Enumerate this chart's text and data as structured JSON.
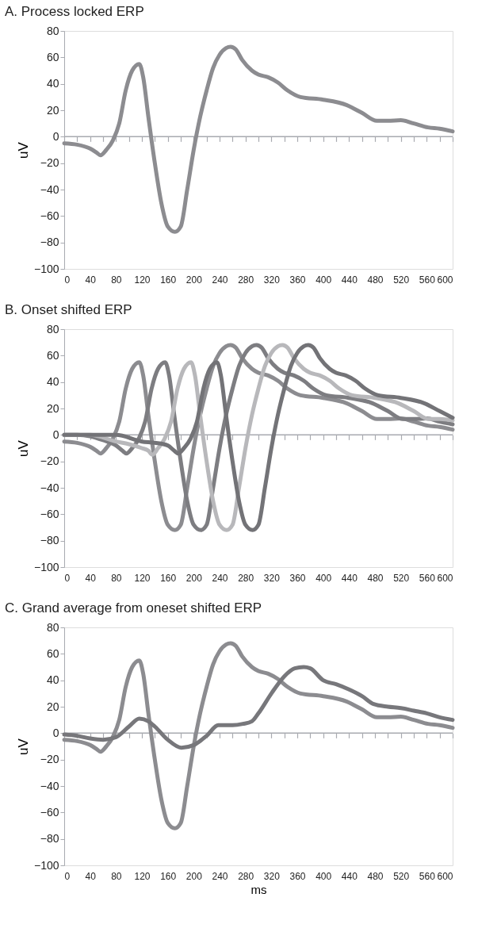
{
  "chart_data": [
    {
      "type": "line",
      "title": "A. Process locked ERP",
      "ylabel": "uV",
      "xlim": [
        0,
        600
      ],
      "ylim": [
        -100,
        80
      ],
      "yticks": [
        -100,
        -80,
        -60,
        -40,
        -20,
        0,
        20,
        40,
        60,
        80
      ],
      "xticks": [
        0,
        {
          "value": 20,
          "label": null
        },
        40,
        {
          "value": 60,
          "label": null
        },
        80,
        {
          "value": 100,
          "label": null
        },
        120,
        {
          "value": 140,
          "label": null
        },
        160,
        {
          "value": 180,
          "label": null
        },
        200,
        {
          "value": 220,
          "label": null
        },
        240,
        {
          "value": 260,
          "label": null
        },
        280,
        {
          "value": 300,
          "label": null
        },
        320,
        {
          "value": 340,
          "label": null
        },
        360,
        {
          "value": 380,
          "label": null
        },
        400,
        {
          "value": 420,
          "label": null
        },
        440,
        {
          "value": 460,
          "label": null
        },
        480,
        {
          "value": 500,
          "label": null
        },
        520,
        {
          "value": 540,
          "label": null
        },
        560,
        {
          "value": 580,
          "label": null
        },
        600
      ],
      "grid": false,
      "legend": false,
      "line_style": "solid",
      "ref_lines": [
        {
          "axis": "y",
          "value": 0,
          "color": "#a8aab0"
        }
      ],
      "series": [
        {
          "color": "#8c8c90",
          "x": [
            0,
            20,
            40,
            50,
            56,
            65,
            75,
            85,
            95,
            105,
            116,
            122,
            130,
            140,
            150,
            160,
            171,
            180,
            190,
            200,
            210,
            220,
            230,
            240,
            250,
            257,
            265,
            275,
            290,
            300,
            315,
            330,
            345,
            365,
            400,
            436,
            460,
            483,
            500,
            520,
            540,
            562,
            580,
            600
          ],
          "values": [
            -5,
            -6,
            -9,
            -12,
            -14,
            -10,
            -3,
            10,
            35,
            50,
            55,
            45,
            15,
            -20,
            -50,
            -68,
            -72,
            -68,
            -40,
            -10,
            15,
            35,
            52,
            62,
            67,
            68,
            66,
            58,
            50,
            47,
            45,
            41,
            35,
            30,
            28,
            24,
            18,
            12,
            12,
            12.5,
            10,
            7,
            6,
            4
          ]
        }
      ]
    },
    {
      "type": "line",
      "title": "B. Onset shifted ERP",
      "ylabel": "uV",
      "xlim": [
        0,
        600
      ],
      "ylim": [
        -100,
        80
      ],
      "yticks": [
        -100,
        -80,
        -60,
        -40,
        -20,
        0,
        20,
        40,
        60,
        80
      ],
      "xticks": [
        0,
        {
          "value": 20,
          "label": null
        },
        40,
        {
          "value": 60,
          "label": null
        },
        80,
        {
          "value": 100,
          "label": null
        },
        120,
        {
          "value": 140,
          "label": null
        },
        160,
        {
          "value": 180,
          "label": null
        },
        200,
        {
          "value": 220,
          "label": null
        },
        240,
        {
          "value": 260,
          "label": null
        },
        280,
        {
          "value": 300,
          "label": null
        },
        320,
        {
          "value": 340,
          "label": null
        },
        360,
        {
          "value": 380,
          "label": null
        },
        400,
        {
          "value": 420,
          "label": null
        },
        440,
        {
          "value": 460,
          "label": null
        },
        480,
        {
          "value": 500,
          "label": null
        },
        520,
        {
          "value": 540,
          "label": null
        },
        560,
        {
          "value": 580,
          "label": null
        },
        600
      ],
      "grid": false,
      "legend": false,
      "line_style": "solid",
      "ref_lines": [
        {
          "axis": "y",
          "value": 0,
          "color": "#a8aab0"
        }
      ],
      "series": [
        {
          "color": "#8c8c90",
          "x": [
            0,
            20,
            40,
            50,
            56,
            65,
            75,
            85,
            95,
            105,
            116,
            122,
            130,
            140,
            150,
            160,
            171,
            180,
            190,
            200,
            210,
            220,
            230,
            240,
            250,
            257,
            265,
            275,
            290,
            300,
            315,
            330,
            345,
            365,
            400,
            436,
            460,
            483,
            500,
            520,
            540,
            562,
            580,
            600
          ],
          "values": [
            -5,
            -6,
            -9,
            -12,
            -14,
            -10,
            -3,
            10,
            35,
            50,
            55,
            45,
            15,
            -20,
            -50,
            -68,
            -72,
            -68,
            -40,
            -10,
            15,
            35,
            52,
            62,
            67,
            68,
            66,
            58,
            50,
            47,
            45,
            41,
            35,
            30,
            28,
            24,
            18,
            12,
            12,
            12.5,
            10,
            7,
            6,
            4
          ]
        },
        {
          "color": "#7d7d81",
          "x": [
            0,
            20,
            40,
            60,
            80,
            90,
            96,
            105,
            115,
            125,
            135,
            145,
            156,
            162,
            170,
            180,
            190,
            200,
            211,
            220,
            230,
            240,
            250,
            260,
            270,
            280,
            290,
            297,
            305,
            315,
            330,
            340,
            355,
            370,
            385,
            405,
            440,
            476,
            500,
            523,
            540,
            560,
            580,
            600
          ],
          "values": [
            0,
            0,
            -1,
            -4,
            -8,
            -12,
            -14,
            -10,
            -3,
            10,
            35,
            50,
            55,
            45,
            15,
            -20,
            -50,
            -68,
            -72,
            -68,
            -40,
            -10,
            15,
            35,
            52,
            62,
            67,
            68,
            66,
            58,
            50,
            47,
            45,
            41,
            35,
            30,
            28,
            24,
            18,
            12,
            12,
            12.5,
            10,
            8
          ]
        },
        {
          "color": "#b8b8bb",
          "x": [
            0,
            40,
            80,
            100,
            120,
            130,
            136,
            145,
            155,
            165,
            175,
            185,
            196,
            202,
            210,
            220,
            230,
            240,
            251,
            260,
            270,
            280,
            290,
            300,
            310,
            320,
            330,
            337,
            345,
            355,
            370,
            380,
            395,
            410,
            425,
            445,
            480,
            516,
            540,
            563,
            580,
            600
          ],
          "values": [
            0,
            0,
            -5,
            -7,
            -10,
            -12,
            -15,
            -10,
            -3,
            10,
            35,
            50,
            55,
            45,
            15,
            -20,
            -50,
            -68,
            -72,
            -68,
            -40,
            -10,
            15,
            35,
            52,
            62,
            67,
            68,
            66,
            58,
            50,
            47,
            45,
            41,
            35,
            30,
            28,
            24,
            18,
            12,
            12,
            11
          ]
        },
        {
          "color": "#737377",
          "x": [
            0,
            40,
            80,
            120,
            140,
            160,
            170,
            176,
            185,
            195,
            205,
            215,
            225,
            236,
            242,
            250,
            260,
            270,
            280,
            291,
            300,
            310,
            320,
            330,
            340,
            350,
            360,
            370,
            377,
            385,
            395,
            410,
            420,
            435,
            450,
            465,
            485,
            520,
            556,
            580,
            600
          ],
          "values": [
            0,
            0,
            0,
            -5,
            -6,
            -8,
            -12,
            -14,
            -10,
            -3,
            10,
            35,
            50,
            55,
            45,
            15,
            -20,
            -50,
            -68,
            -72,
            -68,
            -40,
            -10,
            15,
            35,
            52,
            62,
            67,
            68,
            66,
            58,
            50,
            47,
            45,
            41,
            35,
            30,
            28,
            24,
            18,
            13
          ]
        }
      ]
    },
    {
      "type": "line",
      "title": "C. Grand average from oneset shifted ERP",
      "ylabel": "uV",
      "xlabel": "ms",
      "xlim": [
        0,
        600
      ],
      "ylim": [
        -100,
        80
      ],
      "yticks": [
        -100,
        -80,
        -60,
        -40,
        -20,
        0,
        20,
        40,
        60,
        80
      ],
      "xticks": [
        0,
        {
          "value": 20,
          "label": null
        },
        40,
        {
          "value": 60,
          "label": null
        },
        80,
        {
          "value": 100,
          "label": null
        },
        120,
        {
          "value": 140,
          "label": null
        },
        160,
        {
          "value": 180,
          "label": null
        },
        200,
        {
          "value": 220,
          "label": null
        },
        240,
        {
          "value": 260,
          "label": null
        },
        280,
        {
          "value": 300,
          "label": null
        },
        320,
        {
          "value": 340,
          "label": null
        },
        360,
        {
          "value": 380,
          "label": null
        },
        400,
        {
          "value": 420,
          "label": null
        },
        440,
        {
          "value": 460,
          "label": null
        },
        480,
        {
          "value": 500,
          "label": null
        },
        520,
        {
          "value": 540,
          "label": null
        },
        560,
        {
          "value": 580,
          "label": null
        },
        600
      ],
      "grid": false,
      "legend": false,
      "line_style": "solid",
      "ref_lines": [
        {
          "axis": "y",
          "value": 0,
          "color": "#a8aab0"
        }
      ],
      "series": [
        {
          "color": "#8c8c90",
          "x": [
            0,
            20,
            40,
            50,
            56,
            65,
            75,
            85,
            95,
            105,
            116,
            122,
            130,
            140,
            150,
            160,
            171,
            180,
            190,
            200,
            210,
            220,
            230,
            240,
            250,
            257,
            265,
            275,
            290,
            300,
            315,
            330,
            345,
            365,
            400,
            436,
            460,
            483,
            500,
            520,
            540,
            562,
            580,
            600
          ],
          "values": [
            -5,
            -6,
            -9,
            -12,
            -14,
            -10,
            -3,
            10,
            35,
            50,
            55,
            45,
            15,
            -20,
            -50,
            -68,
            -72,
            -68,
            -40,
            -10,
            15,
            35,
            52,
            62,
            67,
            68,
            66,
            58,
            50,
            47,
            45,
            41,
            35,
            30,
            28,
            24,
            18,
            12,
            12,
            12.5,
            10,
            7,
            6,
            4
          ]
        },
        {
          "color": "#77777b",
          "x": [
            0,
            20,
            40,
            60,
            80,
            100,
            116,
            130,
            140,
            160,
            181,
            200,
            220,
            238,
            260,
            276,
            290,
            300,
            320,
            340,
            356,
            370,
            380,
            400,
            420,
            440,
            460,
            478,
            500,
            520,
            540,
            560,
            580,
            600
          ],
          "values": [
            -1,
            -2,
            -4,
            -5,
            -3,
            5,
            11,
            9,
            5,
            -5,
            -11,
            -9,
            -2,
            6,
            6,
            7,
            9,
            15,
            30,
            43,
            49,
            50,
            49,
            40,
            37,
            33,
            28,
            22,
            20,
            19,
            17,
            15,
            12,
            10
          ]
        }
      ]
    }
  ]
}
